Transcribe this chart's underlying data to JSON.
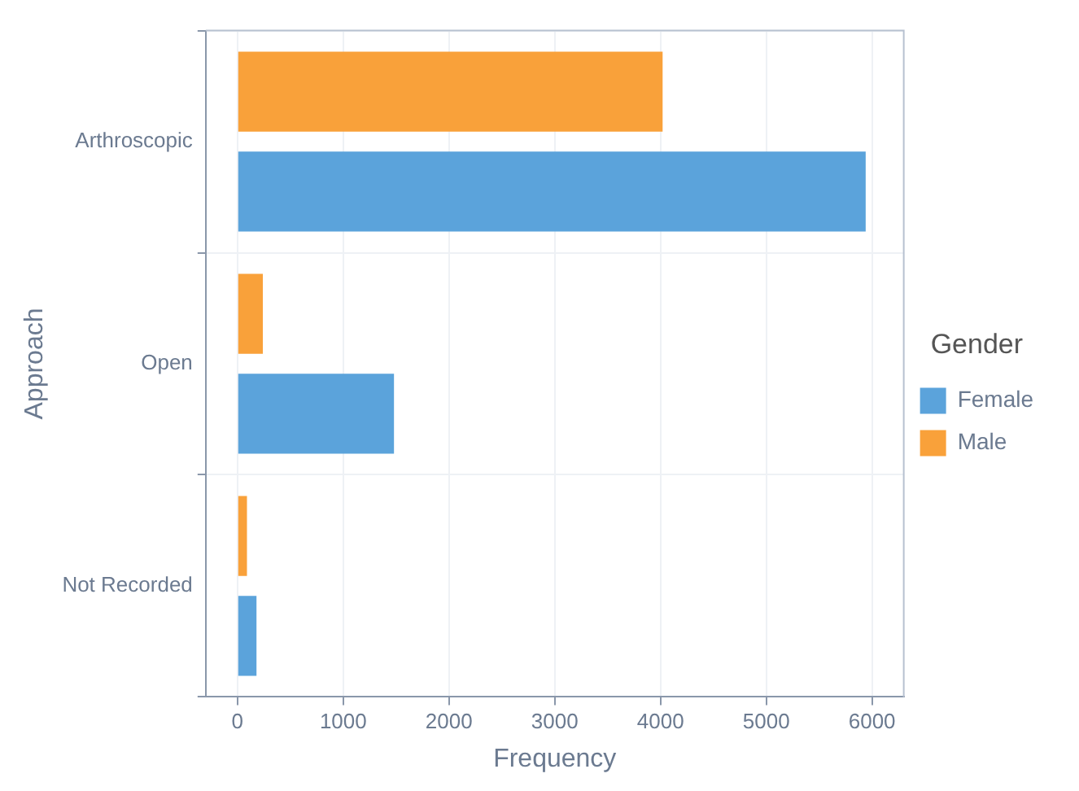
{
  "chart_data": {
    "type": "bar",
    "orientation": "horizontal",
    "xlabel": "Frequency",
    "ylabel": "Approach",
    "legend_title": "Gender",
    "categories": [
      "Arthroscopic",
      "Open",
      "Not Recorded"
    ],
    "series": [
      {
        "name": "Female",
        "color": "#5ba3db",
        "values": [
          5940,
          1480,
          180
        ]
      },
      {
        "name": "Male",
        "color": "#f9a13a",
        "values": [
          4020,
          240,
          90
        ]
      }
    ],
    "xlim": [
      -300,
      6300
    ],
    "xticks": [
      0,
      1000,
      2000,
      3000,
      4000,
      5000,
      6000
    ],
    "grid": true,
    "legend": "right"
  }
}
